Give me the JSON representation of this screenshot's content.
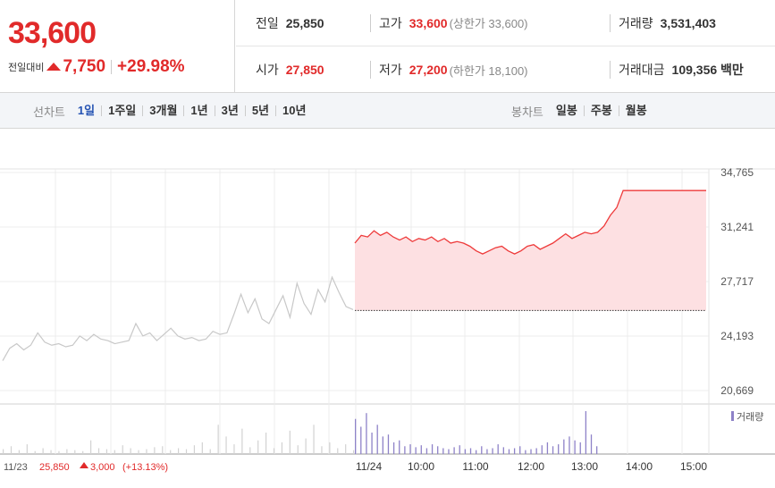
{
  "current": {
    "price": "33,600",
    "change_label": "전일대비",
    "change_amount": "7,750",
    "change_rate": "+29.98%",
    "direction": "up"
  },
  "stats": {
    "prev_close_label": "전일",
    "prev_close": "25,850",
    "high_label": "고가",
    "high": "33,600",
    "upper_limit": "(상한가 33,600)",
    "volume_label": "거래량",
    "volume": "3,531,403",
    "open_label": "시가",
    "open": "27,850",
    "low_label": "저가",
    "low": "27,200",
    "lower_limit": "(하한가 18,100)",
    "amount_label": "거래대금",
    "amount": "109,356 백만"
  },
  "line_tabs": {
    "title": "선차트",
    "items": [
      "1일",
      "1주일",
      "3개월",
      "1년",
      "3년",
      "5년",
      "10년"
    ],
    "selected": "1일"
  },
  "candle_tabs": {
    "title": "봉차트",
    "items": [
      "일봉",
      "주봉",
      "월봉"
    ]
  },
  "chart_data": {
    "type": "line",
    "y_ticks": [
      "34,765",
      "31,241",
      "27,717",
      "24,193",
      "20,669"
    ],
    "ylim": [
      20669,
      34765
    ],
    "prev_day_close": 25850,
    "volume_legend": "거래량",
    "x_labels": [
      "11/23",
      "11/24",
      "10:00",
      "11:00",
      "12:00",
      "13:00",
      "14:00",
      "15:00"
    ],
    "prev_day_note": {
      "date": "11/23",
      "close": "25,850",
      "change": "3,000",
      "rate": "(+13.13%)"
    },
    "prev_day_series": [
      22600,
      23400,
      23700,
      23300,
      23600,
      24400,
      23800,
      23600,
      23700,
      23500,
      23600,
      24200,
      23900,
      24300,
      24000,
      23900,
      23700,
      23800,
      23900,
      25000,
      24200,
      24400,
      23900,
      24300,
      24700,
      24200,
      24000,
      24100,
      23900,
      24000,
      24500,
      24300,
      24400,
      25600,
      26900,
      25700,
      26600,
      25300,
      25000,
      25900,
      26800,
      25400,
      27600,
      26300,
      25600,
      27200,
      26400,
      28000,
      27000,
      26100,
      25900
    ],
    "today_series": [
      30200,
      30700,
      30600,
      31000,
      30700,
      30900,
      30600,
      30400,
      30600,
      30300,
      30500,
      30400,
      30600,
      30300,
      30500,
      30200,
      30300,
      30200,
      30000,
      29700,
      29500,
      29700,
      29900,
      30000,
      29700,
      29500,
      29700,
      30000,
      30100,
      29800,
      30000,
      30200,
      30500,
      30800,
      30500,
      30700,
      30900,
      30800,
      30900,
      31300,
      32000,
      32500,
      33600,
      33600,
      33600,
      33600,
      33600,
      33600,
      33600,
      33600,
      33600,
      33600,
      33600,
      33600,
      33600,
      33600
    ],
    "prev_day_volume": [
      5,
      8,
      4,
      10,
      3,
      6,
      4,
      3,
      5,
      4,
      3,
      14,
      6,
      5,
      4,
      9,
      6,
      4,
      5,
      7,
      8,
      4,
      6,
      5,
      9,
      12,
      5,
      30,
      18,
      10,
      26,
      7,
      14,
      22,
      6,
      12,
      24,
      9,
      16,
      30,
      8,
      12,
      6,
      10,
      4
    ],
    "today_volume": [
      36,
      28,
      42,
      22,
      30,
      18,
      20,
      12,
      14,
      8,
      10,
      7,
      9,
      6,
      10,
      8,
      6,
      5,
      7,
      9,
      5,
      6,
      4,
      8,
      5,
      6,
      10,
      7,
      5,
      6,
      8,
      4,
      5,
      6,
      9,
      12,
      8,
      10,
      15,
      18,
      14,
      12,
      44,
      20,
      8
    ]
  },
  "colors": {
    "up": "#e12a2a",
    "today_line": "#ee3a3a",
    "today_fill": "#fde0e2",
    "prev_line": "#c8c8c8",
    "today_volume": "#8e82c8",
    "prev_volume": "#d2d2d2",
    "selected_tab": "#2553b3"
  }
}
